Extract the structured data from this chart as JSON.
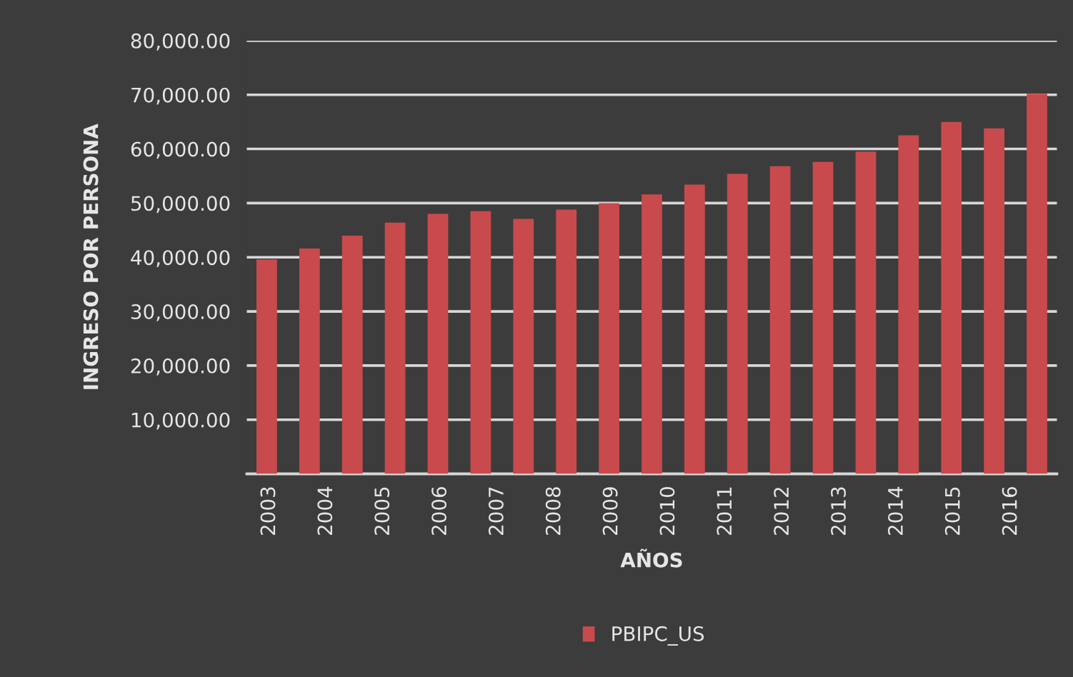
{
  "chart_data": {
    "type": "bar",
    "xlabel": "AÑOS",
    "ylabel": "INGRESO POR PERSONA",
    "x": [
      2002.95,
      2003.7,
      2004.45,
      2005.2,
      2005.95,
      2006.7,
      2007.45,
      2008.2,
      2008.95,
      2009.7,
      2010.45,
      2011.2,
      2011.95,
      2012.7,
      2013.45,
      2014.2,
      2014.95,
      2015.7,
      2016.45
    ],
    "series": [
      {
        "name": "PBIPC_US",
        "color": "#c94a4c",
        "values": [
          39600,
          41600,
          44000,
          46400,
          48000,
          48500,
          47100,
          48800,
          50000,
          51600,
          53400,
          55400,
          56800,
          57600,
          59500,
          62500,
          65000,
          63800,
          70200
        ]
      }
    ],
    "xlim": [
      2002.6,
      2016.8
    ],
    "xticks": [
      2003,
      2004,
      2005,
      2006,
      2007,
      2008,
      2009,
      2010,
      2011,
      2012,
      2013,
      2014,
      2015,
      2016
    ],
    "ylim": [
      0,
      80000
    ],
    "yticks": [
      {
        "value": 0,
        "label": null
      },
      {
        "value": 10000,
        "label": "10,000.00"
      },
      {
        "value": 20000,
        "label": "20,000.00"
      },
      {
        "value": 30000,
        "label": "30,000.00"
      },
      {
        "value": 40000,
        "label": "40,000.00"
      },
      {
        "value": 50000,
        "label": "50,000.00"
      },
      {
        "value": 60000,
        "label": "60,000.00"
      },
      {
        "value": 70000,
        "label": "70,000.00"
      },
      {
        "value": 80000,
        "label": "80,000.00"
      }
    ],
    "grid": "y",
    "legend": "bottom"
  }
}
